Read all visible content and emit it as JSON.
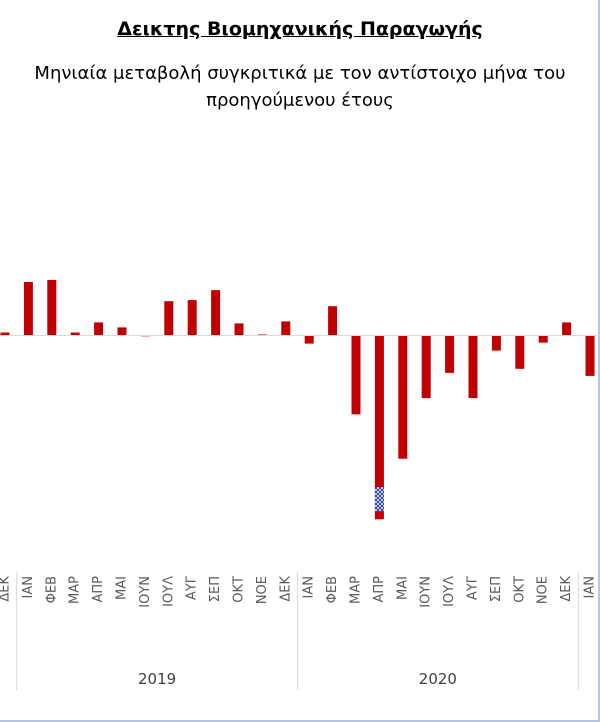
{
  "title": "Δεικτης Βιομηχανικής Παραγωγής",
  "subtitle_line1": "Μηνιαία μεταβολή συγκριτικά με τον αντίστοιχο μήνα του",
  "subtitle_line2": "προηγούμενου έτους",
  "chart_data": {
    "type": "bar",
    "title": "Δεικτης Βιομηχανικής Παραγωγής",
    "subtitle": "Μηνιαία μεταβολή συγκριτικά με τον αντίστοιχο μήνα του προηγούμενου έτους",
    "xlabel": "",
    "ylabel": "",
    "y_axis_visible": false,
    "gridlines": false,
    "bar_color": "#c00000",
    "highlight_pattern_color": "#1f3a93",
    "categories": [
      "ΔΕΚ",
      "ΙΑΝ",
      "ΦΕΒ",
      "ΜΑΡ",
      "ΑΠΡ",
      "ΜΑΙ",
      "ΙΟΥΝ",
      "ΙΟΥΛ",
      "ΑΥΓ",
      "ΣΕΠ",
      "ΟΚΤ",
      "ΝΟΕ",
      "ΔΕΚ",
      "ΙΑΝ",
      "ΦΕΒ",
      "ΜΑΡ",
      "ΑΠΡ",
      "ΜΑΙ",
      "ΙΟΥΝ",
      "ΙΟΥΛ",
      "ΑΥΓ",
      "ΣΕΠ",
      "ΟΚΤ",
      "ΝΟΕ",
      "ΔΕΚ",
      "ΙΑΝ"
    ],
    "groups": [
      {
        "label": "2019",
        "categories": [
          "ΙΑΝ",
          "ΦΕΒ",
          "ΜΑΡ",
          "ΑΠΡ",
          "ΜΑΙ",
          "ΙΟΥΝ",
          "ΙΟΥΛ",
          "ΑΥΓ",
          "ΣΕΠ",
          "ΟΚΤ",
          "ΝΟΕ",
          "ΔΕΚ"
        ]
      },
      {
        "label": "2020",
        "categories": [
          "ΙΑΝ",
          "ΦΕΒ",
          "ΜΑΡ",
          "ΑΠΡ",
          "ΜΑΙ",
          "ΙΟΥΝ",
          "ΙΟΥΛ",
          "ΑΥΓ",
          "ΣΕΠ",
          "ΟΚΤ",
          "ΝΟΕ",
          "ΔΕΚ"
        ]
      }
    ],
    "values": [
      0.3,
      5.3,
      5.5,
      0.3,
      1.3,
      0.8,
      0.0,
      3.4,
      3.5,
      4.5,
      1.2,
      0.1,
      1.4,
      -0.8,
      2.9,
      -7.8,
      -18.2,
      -12.2,
      -6.2,
      -3.7,
      -6.2,
      -1.5,
      -3.3,
      -0.7,
      1.3,
      -4.0
    ],
    "highlight": {
      "index": 16,
      "value": -15.0,
      "pattern": "crosshatch"
    }
  }
}
